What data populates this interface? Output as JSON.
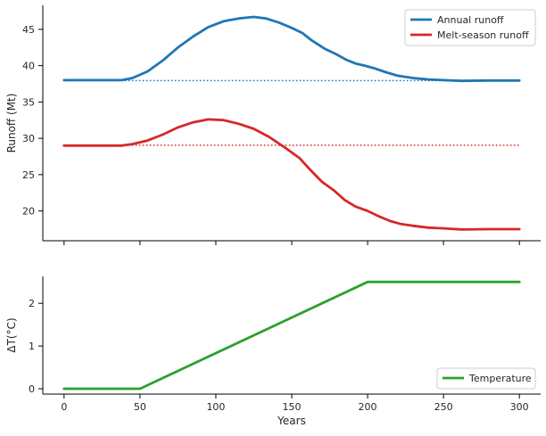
{
  "chart_data": [
    {
      "type": "line",
      "ylabel": "Runoff (Mt)",
      "ylim": [
        15.9,
        48.3
      ],
      "xlim": [
        -14,
        314
      ],
      "yticks": [
        20,
        25,
        30,
        35,
        40,
        45
      ],
      "xticks": [
        0,
        50,
        100,
        150,
        200,
        250,
        300
      ],
      "x_ticklabels_visible": false,
      "legend_position": "top-right",
      "series": [
        {
          "name": "Annual runoff",
          "color": "#1f77b4",
          "points": [
            [
              0,
              38
            ],
            [
              20,
              38
            ],
            [
              38,
              38
            ],
            [
              45,
              38.3
            ],
            [
              55,
              39.2
            ],
            [
              65,
              40.7
            ],
            [
              75,
              42.5
            ],
            [
              85,
              44
            ],
            [
              95,
              45.3
            ],
            [
              105,
              46.1
            ],
            [
              115,
              46.5
            ],
            [
              125,
              46.7
            ],
            [
              133,
              46.5
            ],
            [
              142,
              45.9
            ],
            [
              150,
              45.2
            ],
            [
              157,
              44.5
            ],
            [
              163,
              43.5
            ],
            [
              172,
              42.3
            ],
            [
              180,
              41.5
            ],
            [
              186,
              40.8
            ],
            [
              192,
              40.3
            ],
            [
              198,
              40
            ],
            [
              205,
              39.6
            ],
            [
              212,
              39.1
            ],
            [
              220,
              38.6
            ],
            [
              230,
              38.3
            ],
            [
              240,
              38.1
            ],
            [
              250,
              38
            ],
            [
              262,
              37.9
            ],
            [
              280,
              37.95
            ],
            [
              300,
              37.95
            ]
          ]
        },
        {
          "name": "Melt-season runoff",
          "color": "#d62728",
          "points": [
            [
              0,
              29
            ],
            [
              20,
              29
            ],
            [
              38,
              29
            ],
            [
              45,
              29.2
            ],
            [
              55,
              29.7
            ],
            [
              65,
              30.5
            ],
            [
              75,
              31.5
            ],
            [
              85,
              32.2
            ],
            [
              95,
              32.6
            ],
            [
              105,
              32.5
            ],
            [
              115,
              32
            ],
            [
              125,
              31.3
            ],
            [
              135,
              30.2
            ],
            [
              145,
              28.8
            ],
            [
              155,
              27.3
            ],
            [
              162,
              25.7
            ],
            [
              170,
              24
            ],
            [
              178,
              22.8
            ],
            [
              185,
              21.5
            ],
            [
              192,
              20.6
            ],
            [
              200,
              20
            ],
            [
              208,
              19.2
            ],
            [
              215,
              18.6
            ],
            [
              222,
              18.2
            ],
            [
              230,
              17.95
            ],
            [
              240,
              17.7
            ],
            [
              250,
              17.6
            ],
            [
              262,
              17.45
            ],
            [
              280,
              17.5
            ],
            [
              300,
              17.5
            ]
          ]
        }
      ],
      "reference_lines": [
        {
          "y": 37.95,
          "color": "#1f77b4",
          "style": "dotted"
        },
        {
          "y": 29.05,
          "color": "#d62728",
          "style": "dotted"
        }
      ]
    },
    {
      "type": "line",
      "xlabel": "Years",
      "ylabel": "ΔT(°C)",
      "ylim": [
        -0.125,
        2.63
      ],
      "xlim": [
        -14,
        314
      ],
      "yticks": [
        0,
        1,
        2
      ],
      "xticks": [
        0,
        50,
        100,
        150,
        200,
        250,
        300
      ],
      "legend_position": "bottom-right",
      "series": [
        {
          "name": "Temperature",
          "color": "#2ca02c",
          "points": [
            [
              0,
              0
            ],
            [
              50,
              0
            ],
            [
              200,
              2.5
            ],
            [
              300,
              2.5
            ]
          ]
        }
      ]
    }
  ]
}
